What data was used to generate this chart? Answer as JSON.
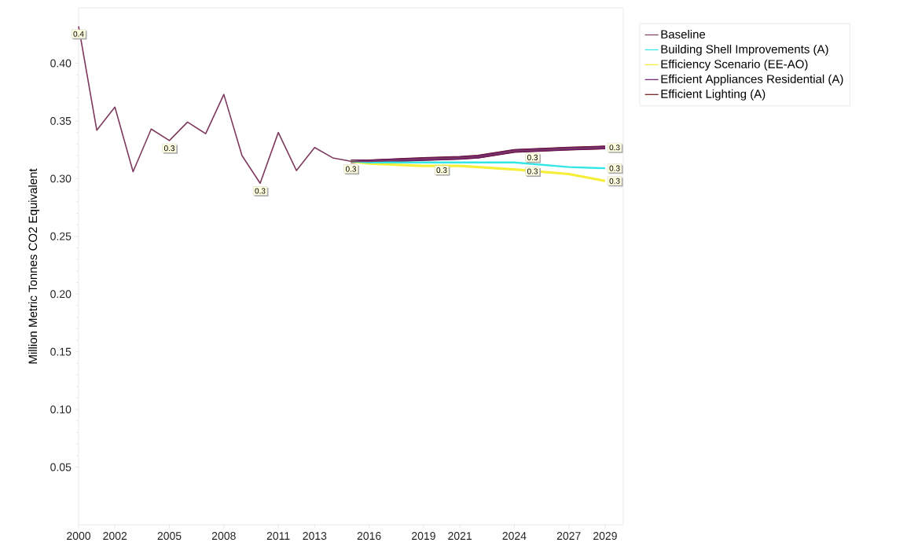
{
  "chart_data": {
    "type": "line",
    "ylabel": "Million Metric Tonnes CO2 Equivalent",
    "xlim": [
      2000,
      2030
    ],
    "ylim": [
      0,
      0.448
    ],
    "xticks": [
      2000,
      2002,
      2005,
      2008,
      2011,
      2013,
      2016,
      2019,
      2021,
      2024,
      2027,
      2029
    ],
    "yticks": [
      {
        "value": 0.05,
        "label": "0.05"
      },
      {
        "value": 0.1,
        "label": "0.10"
      },
      {
        "value": 0.15,
        "label": "0.15"
      },
      {
        "value": 0.2,
        "label": "0.20"
      },
      {
        "value": 0.25,
        "label": "0.25"
      },
      {
        "value": 0.3,
        "label": "0.30"
      },
      {
        "value": 0.35,
        "label": "0.35"
      },
      {
        "value": 0.4,
        "label": "0.40"
      }
    ],
    "grid": false,
    "legend": "top right",
    "marker": "none",
    "line_style": "solid",
    "series": [
      {
        "name": "Baseline",
        "color": "#7e3a5e",
        "x": [
          2000,
          2001,
          2002,
          2003,
          2004,
          2005,
          2006,
          2007,
          2008,
          2009,
          2010,
          2011,
          2012,
          2013,
          2014,
          2015,
          2016,
          2019,
          2021,
          2022,
          2024,
          2027,
          2029
        ],
        "values": [
          0.432,
          0.342,
          0.362,
          0.306,
          0.343,
          0.333,
          0.349,
          0.339,
          0.373,
          0.32,
          0.296,
          0.34,
          0.307,
          0.327,
          0.318,
          0.315,
          0.315,
          0.317,
          0.318,
          0.319,
          0.324,
          0.326,
          0.327
        ]
      },
      {
        "name": "Building Shell Improvements (A)",
        "color": "#33e6e6",
        "x": [
          2015,
          2016,
          2019,
          2021,
          2024,
          2027,
          2029
        ],
        "values": [
          0.315,
          0.314,
          0.314,
          0.314,
          0.314,
          0.31,
          0.309
        ]
      },
      {
        "name": "Efficiency Scenario (EE-AO)",
        "color": "#f5ef3a",
        "x": [
          2015,
          2016,
          2019,
          2021,
          2024,
          2027,
          2029
        ],
        "values": [
          0.315,
          0.313,
          0.311,
          0.311,
          0.308,
          0.304,
          0.298
        ]
      },
      {
        "name": "Efficient Appliances Residential (A)",
        "color": "#6a1a6e",
        "x": [
          2015,
          2016,
          2019,
          2021,
          2022,
          2024,
          2027,
          2029
        ],
        "values": [
          0.315,
          0.315,
          0.317,
          0.318,
          0.319,
          0.324,
          0.326,
          0.327
        ]
      },
      {
        "name": "Efficient Lighting (A)",
        "color": "#6e1010",
        "x": [
          2015,
          2016,
          2019,
          2021,
          2022,
          2024,
          2027,
          2029
        ],
        "values": [
          0.315,
          0.315,
          0.317,
          0.318,
          0.319,
          0.324,
          0.326,
          0.327
        ]
      }
    ],
    "annotations": [
      {
        "text": "0.4",
        "x": 2000,
        "y": 0.432
      },
      {
        "text": "0.3",
        "x": 2005,
        "y": 0.333
      },
      {
        "text": "0.3",
        "x": 2010,
        "y": 0.296
      },
      {
        "text": "0.3",
        "x": 2015,
        "y": 0.315
      },
      {
        "text": "0.3",
        "x": 2020,
        "y": 0.314
      },
      {
        "text": "0.3",
        "x": 2025,
        "y": 0.325
      },
      {
        "text": "0.3",
        "x": 2025,
        "y": 0.313
      },
      {
        "text": "0.3",
        "x": 2029,
        "y": 0.327
      },
      {
        "text": "0.3",
        "x": 2029,
        "y": 0.309
      },
      {
        "text": "0.3",
        "x": 2029,
        "y": 0.298
      }
    ]
  }
}
